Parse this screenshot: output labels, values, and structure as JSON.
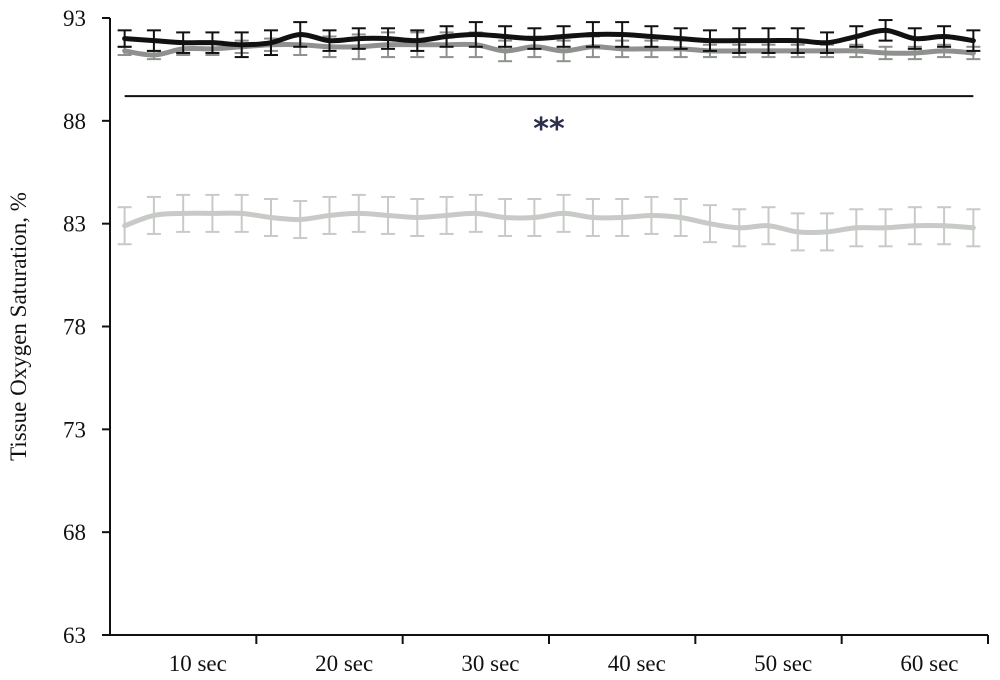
{
  "chart_data": {
    "type": "line",
    "title": "",
    "xlabel": "",
    "ylabel": "Tissue Oxygen Saturation, %",
    "ylim": [
      63,
      93
    ],
    "yticks": [
      63,
      68,
      73,
      78,
      83,
      88,
      93
    ],
    "xlim": [
      0.5,
      30.5
    ],
    "x_tick_labels": [
      {
        "label": "10 sec",
        "x": 3.5
      },
      {
        "label": "20 sec",
        "x": 8.5
      },
      {
        "label": "30 sec",
        "x": 13.5
      },
      {
        "label": "40 sec",
        "x": 18.5
      },
      {
        "label": "50 sec",
        "x": 23.5
      },
      {
        "label": "60 sec",
        "x": 28.5
      }
    ],
    "x_divisions": [
      5.5,
      10.5,
      15.5,
      20.5,
      25.5,
      30.5
    ],
    "x": [
      1,
      2,
      3,
      4,
      5,
      6,
      7,
      8,
      9,
      10,
      11,
      12,
      13,
      14,
      15,
      16,
      17,
      18,
      19,
      20,
      21,
      22,
      23,
      24,
      25,
      26,
      27,
      28,
      29,
      30
    ],
    "series": [
      {
        "color": "#111111",
        "values": [
          92.0,
          91.9,
          91.8,
          91.8,
          91.7,
          91.8,
          92.2,
          91.9,
          92.0,
          92.0,
          91.9,
          92.1,
          92.2,
          92.1,
          92.0,
          92.1,
          92.2,
          92.2,
          92.1,
          92.0,
          91.9,
          91.9,
          91.9,
          91.9,
          91.8,
          92.1,
          92.4,
          92.0,
          92.1,
          91.9
        ],
        "error": [
          0.4,
          0.5,
          0.5,
          0.5,
          0.6,
          0.6,
          0.6,
          0.5,
          0.5,
          0.5,
          0.5,
          0.5,
          0.6,
          0.5,
          0.5,
          0.5,
          0.6,
          0.6,
          0.5,
          0.5,
          0.5,
          0.6,
          0.6,
          0.6,
          0.5,
          0.5,
          0.5,
          0.5,
          0.5,
          0.5
        ]
      },
      {
        "color": "#8e918e",
        "values": [
          91.4,
          91.2,
          91.5,
          91.5,
          91.6,
          91.7,
          91.7,
          91.6,
          91.6,
          91.7,
          91.7,
          91.7,
          91.7,
          91.4,
          91.6,
          91.4,
          91.6,
          91.5,
          91.5,
          91.5,
          91.4,
          91.4,
          91.4,
          91.4,
          91.4,
          91.4,
          91.3,
          91.3,
          91.4,
          91.3
        ],
        "error": [
          0.2,
          0.2,
          0.3,
          0.3,
          0.3,
          0.3,
          0.5,
          0.5,
          0.6,
          0.6,
          0.6,
          0.6,
          0.6,
          0.5,
          0.5,
          0.5,
          0.5,
          0.4,
          0.4,
          0.4,
          0.3,
          0.3,
          0.3,
          0.3,
          0.3,
          0.3,
          0.3,
          0.3,
          0.3,
          0.3
        ]
      },
      {
        "color": "#c7cac6",
        "values": [
          82.9,
          83.4,
          83.5,
          83.5,
          83.5,
          83.3,
          83.2,
          83.4,
          83.5,
          83.4,
          83.3,
          83.4,
          83.5,
          83.3,
          83.3,
          83.5,
          83.3,
          83.3,
          83.4,
          83.3,
          83.0,
          82.8,
          82.9,
          82.6,
          82.6,
          82.8,
          82.8,
          82.9,
          82.9,
          82.8
        ],
        "error": [
          0.9,
          0.9,
          0.9,
          0.9,
          0.9,
          0.9,
          0.9,
          0.9,
          0.9,
          0.9,
          0.9,
          0.9,
          0.9,
          0.9,
          0.9,
          0.9,
          0.9,
          0.9,
          0.9,
          0.9,
          0.9,
          0.9,
          0.9,
          0.9,
          0.9,
          0.9,
          0.9,
          0.9,
          0.9,
          0.9
        ]
      }
    ],
    "reference_line": {
      "y": 89.2,
      "x_from": 1,
      "x_to": 30
    },
    "annotation": {
      "text": "**",
      "x": 15.5,
      "y": 87.9
    },
    "grid": false,
    "legend": "none"
  }
}
